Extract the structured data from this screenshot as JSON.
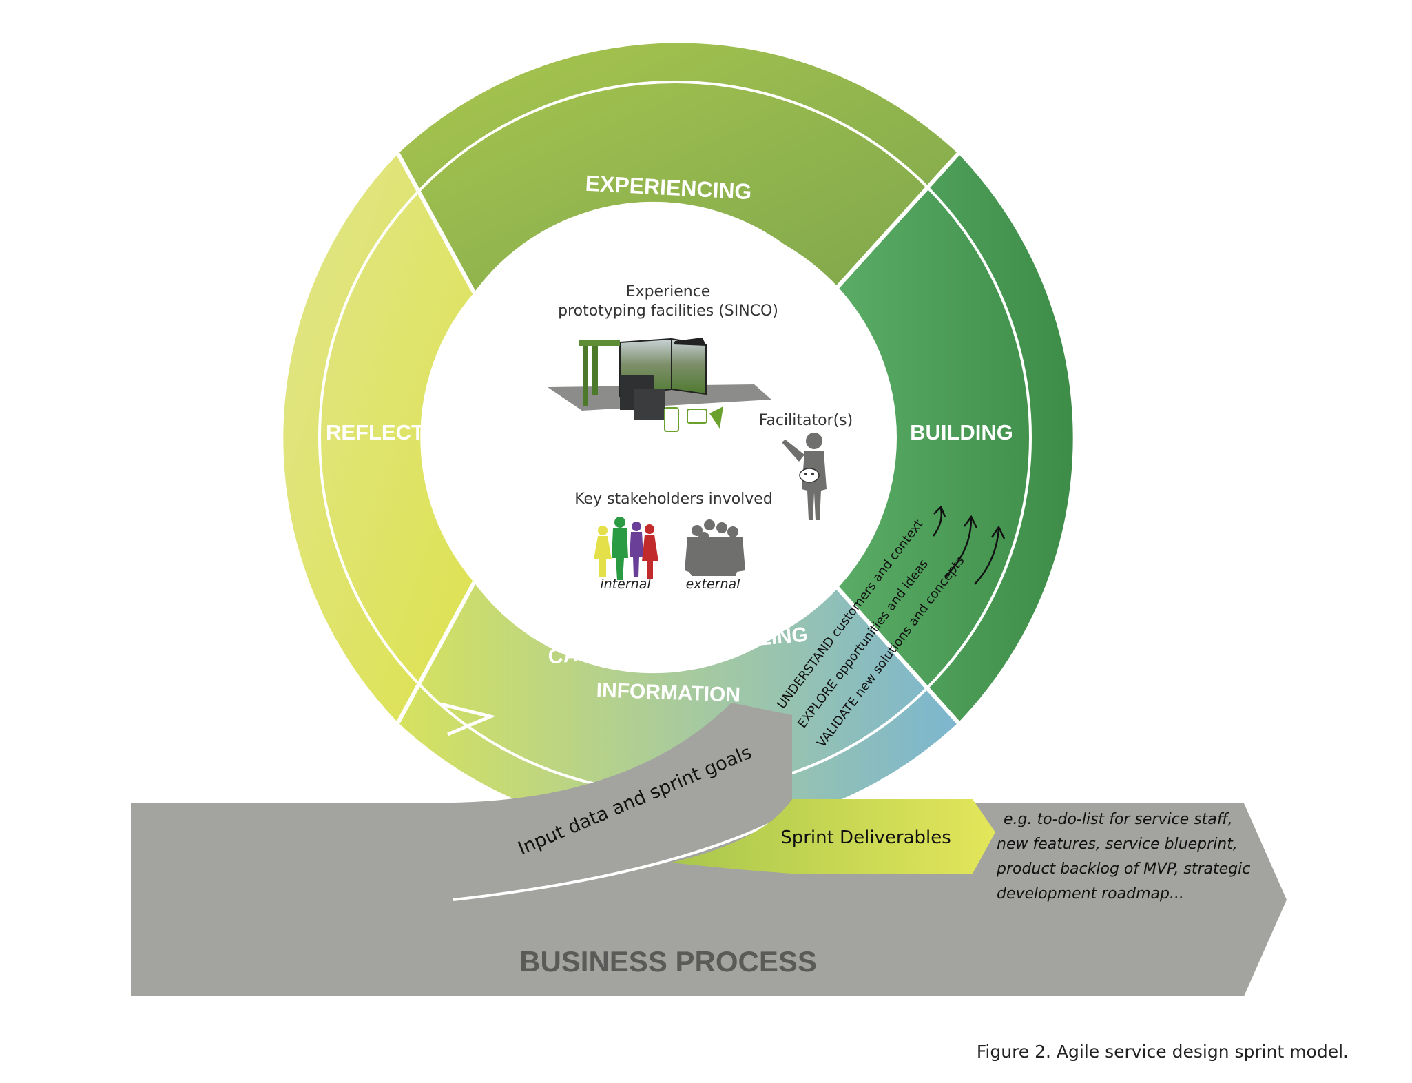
{
  "phases": {
    "experiencing": "EXPERIENCING",
    "building": "BUILDING",
    "reflecting": "REFLECTING",
    "capturing_line1": "CAPTURING & MODELING",
    "capturing_line2": "INFORMATION"
  },
  "center": {
    "facilities_line1": "Experience",
    "facilities_line2": "prototyping facilities (SINCO)",
    "facilitator": "Facilitator(s)",
    "stakeholders": "Key stakeholders involved",
    "internal": "internal",
    "external": "external"
  },
  "validation": {
    "understand": "UNDERSTAND customers and context",
    "explore": "EXPLORE opportunities and ideas",
    "validate": "VALIDATE new solutions and concepts"
  },
  "flow": {
    "input": "Input data and sprint goals",
    "deliverables": "Sprint Deliverables",
    "examples": [
      "e.g. to-do-list for service staff,",
      "new features, service blueprint,",
      "product backlog of MVP, strategic",
      "development roadmap..."
    ],
    "business_process": "BUSINESS PROCESS"
  },
  "caption": "Figure 2. Agile service design sprint model.",
  "colors": {
    "experiencing": "#8db34a",
    "building": "#4a9d57",
    "reflecting": "#dde36a",
    "capturing": "#86bcd0",
    "process_gray": "#a3a49f"
  }
}
